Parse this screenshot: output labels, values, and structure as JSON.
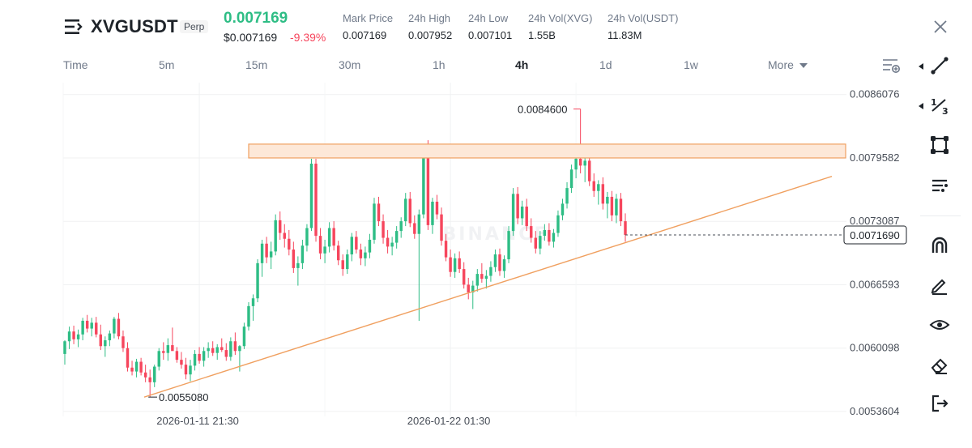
{
  "header": {
    "symbol": "XVGUSDT",
    "badge": "Perp",
    "last_price": "0.007169",
    "usd_price": "$0.007169",
    "change_pct": "-9.39%",
    "stats": [
      {
        "label": "Mark Price",
        "value": "0.007169"
      },
      {
        "label": "24h High",
        "value": "0.007952"
      },
      {
        "label": "24h Low",
        "value": "0.007101"
      },
      {
        "label": "24h Vol(XVG)",
        "value": "1.55B"
      },
      {
        "label": "24h Vol(USDT)",
        "value": "11.83M"
      }
    ]
  },
  "tabs": {
    "items": [
      "Time",
      "5m",
      "15m",
      "30m",
      "1h",
      "4h",
      "1d",
      "1w"
    ],
    "active": "4h",
    "more_label": "More"
  },
  "icons": {
    "menu": "menu-icon",
    "close": "close-icon",
    "settings": "indicator-settings-icon",
    "tools": [
      "trend-line-icon",
      "fibonacci-icon",
      "rectangle-shape-icon",
      "text-tool-icon",
      "magnet-icon",
      "pencil-icon",
      "eye-icon",
      "eraser-icon",
      "export-icon"
    ]
  },
  "colors": {
    "up": "#2ebd85",
    "down": "#f6465d",
    "drawing": "#f0a060",
    "zone_fill": "#fde8d8",
    "text_muted": "#707a8a"
  },
  "chart_data": {
    "type": "candlestick",
    "interval": "4h",
    "y_axis_labels": [
      "0.0086076",
      "0.0079582",
      "0.0073087",
      "0.0066593",
      "0.0060098",
      "0.0053604"
    ],
    "ylim": [
      0.00531,
      0.00873
    ],
    "x_axis_labels": [
      "2026-01-11 21:30",
      "2026-01-22 01:30"
    ],
    "current_price_label": "0.0071690",
    "current_price": 0.007169,
    "annotations": [
      {
        "text": "0.0084600",
        "value": 0.00846
      },
      {
        "text": "0.0055080",
        "value": 0.005508
      }
    ],
    "resistance_zone": [
      0.0079582,
      0.0081
    ],
    "support_trendline": [
      0.005508,
      0.00777
    ],
    "watermark": "BINANCE",
    "candles": [
      [
        0.00595,
        0.00609,
        0.00584,
        0.00608
      ],
      [
        0.00608,
        0.00623,
        0.006,
        0.00618
      ],
      [
        0.00618,
        0.00624,
        0.00605,
        0.0061
      ],
      [
        0.0061,
        0.0062,
        0.00602,
        0.00615
      ],
      [
        0.00615,
        0.00632,
        0.00609,
        0.00629
      ],
      [
        0.00629,
        0.00635,
        0.00617,
        0.00621
      ],
      [
        0.00621,
        0.00632,
        0.00613,
        0.00627
      ],
      [
        0.00627,
        0.00633,
        0.00612,
        0.00615
      ],
      [
        0.00615,
        0.00625,
        0.00599,
        0.00603
      ],
      [
        0.00603,
        0.00613,
        0.00592,
        0.00609
      ],
      [
        0.00609,
        0.00619,
        0.00603,
        0.00616
      ],
      [
        0.00616,
        0.00633,
        0.00611,
        0.00631
      ],
      [
        0.00631,
        0.00637,
        0.0061,
        0.00613
      ],
      [
        0.00613,
        0.00619,
        0.00597,
        0.00601
      ],
      [
        0.00601,
        0.00607,
        0.00577,
        0.00581
      ],
      [
        0.00581,
        0.00588,
        0.00573,
        0.00577
      ],
      [
        0.00577,
        0.0059,
        0.00571,
        0.00587
      ],
      [
        0.00587,
        0.00591,
        0.00573,
        0.00576
      ],
      [
        0.00576,
        0.00584,
        0.00566,
        0.00571
      ],
      [
        0.00571,
        0.00579,
        0.00551,
        0.00566
      ],
      [
        0.00566,
        0.00584,
        0.00561,
        0.00582
      ],
      [
        0.00582,
        0.00601,
        0.00578,
        0.00598
      ],
      [
        0.00598,
        0.00607,
        0.00589,
        0.00596
      ],
      [
        0.00596,
        0.00611,
        0.00588,
        0.00604
      ],
      [
        0.00604,
        0.00622,
        0.00601,
        0.00598
      ],
      [
        0.00598,
        0.00602,
        0.00586,
        0.00589
      ],
      [
        0.00589,
        0.00597,
        0.0058,
        0.00584
      ],
      [
        0.00584,
        0.00591,
        0.00569,
        0.00574
      ],
      [
        0.00574,
        0.00589,
        0.00567,
        0.00583
      ],
      [
        0.00583,
        0.00599,
        0.00578,
        0.00595
      ],
      [
        0.00595,
        0.00602,
        0.00585,
        0.00588
      ],
      [
        0.00588,
        0.00602,
        0.00582,
        0.00598
      ],
      [
        0.00598,
        0.00607,
        0.00591,
        0.00601
      ],
      [
        0.00601,
        0.00608,
        0.00593,
        0.00596
      ],
      [
        0.00596,
        0.00605,
        0.00589,
        0.00602
      ],
      [
        0.00602,
        0.00611,
        0.00597,
        0.00599
      ],
      [
        0.00599,
        0.00606,
        0.00588,
        0.00592
      ],
      [
        0.00592,
        0.00612,
        0.00588,
        0.00608
      ],
      [
        0.00608,
        0.00617,
        0.00594,
        0.00598
      ],
      [
        0.00598,
        0.00604,
        0.00577,
        0.00603
      ],
      [
        0.00603,
        0.00627,
        0.006,
        0.00623
      ],
      [
        0.00623,
        0.00648,
        0.00619,
        0.00644
      ],
      [
        0.00644,
        0.00656,
        0.00629,
        0.00652
      ],
      [
        0.00652,
        0.00692,
        0.00648,
        0.00688
      ],
      [
        0.00688,
        0.00712,
        0.00674,
        0.00708
      ],
      [
        0.00708,
        0.00715,
        0.00688,
        0.00694
      ],
      [
        0.00694,
        0.0071,
        0.00682,
        0.007
      ],
      [
        0.007,
        0.00738,
        0.00696,
        0.00732
      ],
      [
        0.00732,
        0.00741,
        0.00712,
        0.00719
      ],
      [
        0.00719,
        0.00728,
        0.00704,
        0.00713
      ],
      [
        0.00713,
        0.00722,
        0.00696,
        0.00702
      ],
      [
        0.00702,
        0.0071,
        0.00678,
        0.00683
      ],
      [
        0.00683,
        0.00695,
        0.00665,
        0.00688
      ],
      [
        0.00688,
        0.00712,
        0.00682,
        0.00706
      ],
      [
        0.00706,
        0.00728,
        0.007,
        0.00724
      ],
      [
        0.00724,
        0.00795,
        0.00721,
        0.0079
      ],
      [
        0.0079,
        0.00795,
        0.0071,
        0.00716
      ],
      [
        0.00716,
        0.00724,
        0.00692,
        0.00698
      ],
      [
        0.00698,
        0.00712,
        0.00688,
        0.00705
      ],
      [
        0.00705,
        0.0073,
        0.00699,
        0.00724
      ],
      [
        0.00724,
        0.00731,
        0.00701,
        0.00706
      ],
      [
        0.00706,
        0.00711,
        0.00686,
        0.00691
      ],
      [
        0.00691,
        0.00697,
        0.00675,
        0.00682
      ],
      [
        0.00682,
        0.00702,
        0.00677,
        0.00697
      ],
      [
        0.00697,
        0.00719,
        0.0069,
        0.00715
      ],
      [
        0.00715,
        0.00721,
        0.00698,
        0.00702
      ],
      [
        0.00702,
        0.00708,
        0.00686,
        0.00693
      ],
      [
        0.00693,
        0.00705,
        0.00685,
        0.00699
      ],
      [
        0.00699,
        0.00718,
        0.00693,
        0.00712
      ],
      [
        0.00712,
        0.00755,
        0.00708,
        0.00749
      ],
      [
        0.00749,
        0.00756,
        0.00726,
        0.00731
      ],
      [
        0.00731,
        0.00738,
        0.00708,
        0.00714
      ],
      [
        0.00714,
        0.00722,
        0.00698,
        0.00705
      ],
      [
        0.00705,
        0.00715,
        0.00696,
        0.00709
      ],
      [
        0.00709,
        0.00726,
        0.00703,
        0.00721
      ],
      [
        0.00721,
        0.00735,
        0.00714,
        0.00731
      ],
      [
        0.00731,
        0.0076,
        0.00726,
        0.00754
      ],
      [
        0.00754,
        0.00761,
        0.00725,
        0.00729
      ],
      [
        0.00729,
        0.00737,
        0.00713,
        0.00718
      ],
      [
        0.00718,
        0.00743,
        0.00629,
        0.00738
      ],
      [
        0.00738,
        0.00803,
        0.00734,
        0.00796
      ],
      [
        0.00796,
        0.00814,
        0.00722,
        0.00727
      ],
      [
        0.00727,
        0.00755,
        0.00718,
        0.00751
      ],
      [
        0.00751,
        0.00758,
        0.00733,
        0.00738
      ],
      [
        0.00738,
        0.00745,
        0.00706,
        0.00711
      ],
      [
        0.00711,
        0.00718,
        0.0069,
        0.00694
      ],
      [
        0.00694,
        0.00702,
        0.00674,
        0.00679
      ],
      [
        0.00679,
        0.00698,
        0.00673,
        0.00693
      ],
      [
        0.00693,
        0.007,
        0.00678,
        0.00682
      ],
      [
        0.00682,
        0.00689,
        0.00662,
        0.00666
      ],
      [
        0.00666,
        0.00673,
        0.00651,
        0.00658
      ],
      [
        0.00658,
        0.0067,
        0.00641,
        0.00665
      ],
      [
        0.00665,
        0.00682,
        0.00659,
        0.00677
      ],
      [
        0.00677,
        0.00688,
        0.00668,
        0.00672
      ],
      [
        0.00672,
        0.00681,
        0.00662,
        0.00675
      ],
      [
        0.00675,
        0.0069,
        0.00669,
        0.00684
      ],
      [
        0.00684,
        0.00702,
        0.00679,
        0.00697
      ],
      [
        0.00697,
        0.00703,
        0.00675,
        0.0068
      ],
      [
        0.0068,
        0.00696,
        0.00673,
        0.00692
      ],
      [
        0.00692,
        0.00726,
        0.00688,
        0.00721
      ],
      [
        0.00721,
        0.00765,
        0.00716,
        0.00759
      ],
      [
        0.00759,
        0.00766,
        0.00728,
        0.00734
      ],
      [
        0.00734,
        0.00752,
        0.00727,
        0.00746
      ],
      [
        0.00746,
        0.00754,
        0.00721,
        0.00726
      ],
      [
        0.00726,
        0.00734,
        0.00709,
        0.00714
      ],
      [
        0.00714,
        0.00721,
        0.00698,
        0.00703
      ],
      [
        0.00703,
        0.00721,
        0.00697,
        0.00716
      ],
      [
        0.00716,
        0.00728,
        0.00711,
        0.00722
      ],
      [
        0.00722,
        0.00729,
        0.00706,
        0.0071
      ],
      [
        0.0071,
        0.00723,
        0.00704,
        0.00719
      ],
      [
        0.00719,
        0.00742,
        0.00715,
        0.00737
      ],
      [
        0.00737,
        0.00754,
        0.00732,
        0.00749
      ],
      [
        0.00749,
        0.00771,
        0.00744,
        0.00765
      ],
      [
        0.00765,
        0.00789,
        0.0076,
        0.00784
      ],
      [
        0.00784,
        0.008,
        0.00775,
        0.00795
      ],
      [
        0.00795,
        0.00846,
        0.0078,
        0.00788
      ],
      [
        0.00788,
        0.00797,
        0.00771,
        0.00793
      ],
      [
        0.00793,
        0.00799,
        0.00767,
        0.00772
      ],
      [
        0.00772,
        0.0078,
        0.00756,
        0.00762
      ],
      [
        0.00762,
        0.00773,
        0.00748,
        0.00769
      ],
      [
        0.00769,
        0.00776,
        0.00743,
        0.00749
      ],
      [
        0.00749,
        0.00761,
        0.00734,
        0.00756
      ],
      [
        0.00756,
        0.00762,
        0.00731,
        0.00737
      ],
      [
        0.00737,
        0.00759,
        0.00729,
        0.00754
      ],
      [
        0.00754,
        0.0076,
        0.00726,
        0.00731
      ],
      [
        0.00731,
        0.00739,
        0.0071,
        0.00717
      ]
    ]
  }
}
